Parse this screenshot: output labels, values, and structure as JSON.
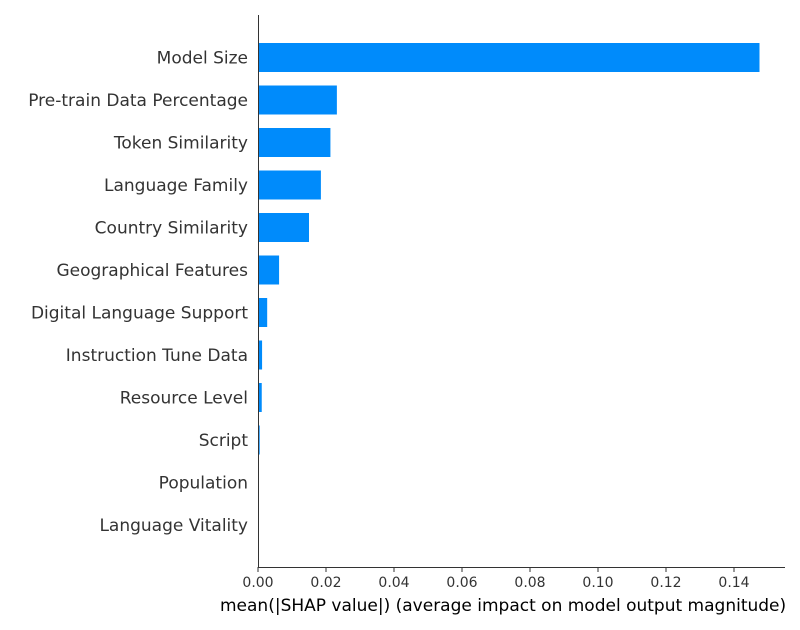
{
  "chart_data": {
    "type": "bar",
    "orientation": "horizontal",
    "categories": [
      "Model Size",
      "Pre-train Data Percentage",
      "Token Similarity",
      "Language Family",
      "Country Similarity",
      "Geographical Features",
      "Digital Language Support",
      "Instruction Tune Data",
      "Resource Level",
      "Script",
      "Population",
      "Language Vitality"
    ],
    "values": [
      0.1475,
      0.0232,
      0.0213,
      0.0185,
      0.015,
      0.0062,
      0.0027,
      0.0012,
      0.0011,
      0.0005,
      0.0002,
      0.0001
    ],
    "xlabel": "mean(|SHAP value|) (average impact on model output magnitude)",
    "ylabel": "",
    "title": "",
    "xlim": [
      0,
      0.155
    ],
    "xticks": [
      "0.00",
      "0.02",
      "0.04",
      "0.06",
      "0.08",
      "0.10",
      "0.12",
      "0.14"
    ],
    "grid": false,
    "bar_color": "#008bfb"
  }
}
